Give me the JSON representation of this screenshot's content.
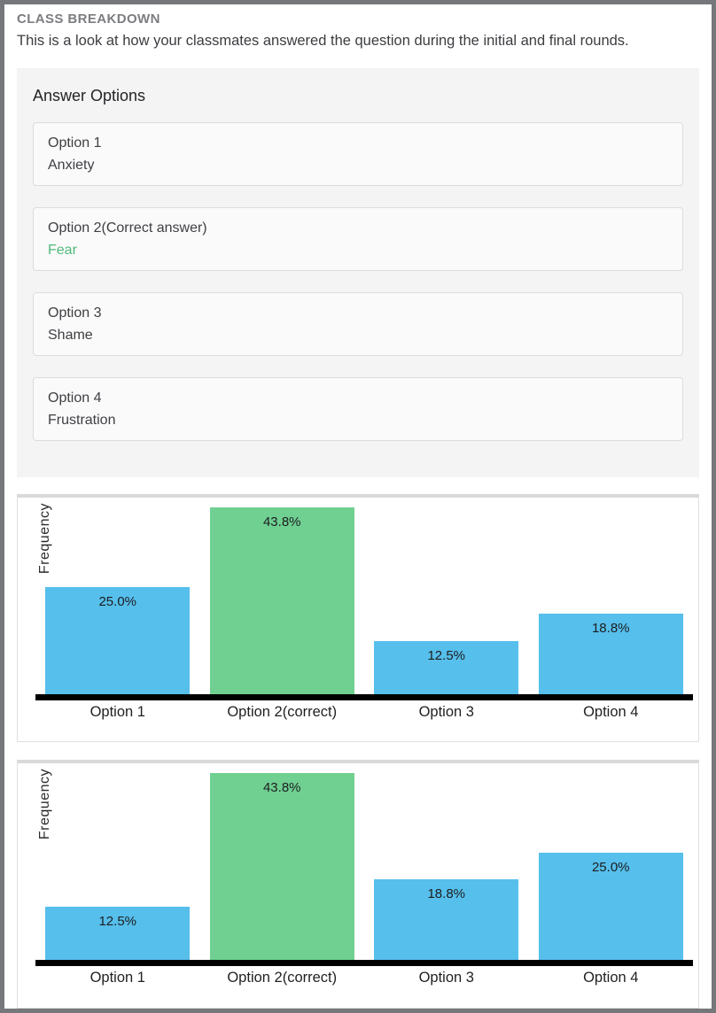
{
  "page": {
    "title": "CLASS BREAKDOWN",
    "description": "This is a look at how your classmates answered the question during the initial and final rounds."
  },
  "answer_options": {
    "heading": "Answer Options",
    "options": [
      {
        "label": "Option 1",
        "value": "Anxiety",
        "correct": false
      },
      {
        "label": "Option 2(Correct answer)",
        "value": "Fear",
        "correct": true
      },
      {
        "label": "Option 3",
        "value": "Shame",
        "correct": false
      },
      {
        "label": "Option 4",
        "value": "Frustration",
        "correct": false
      }
    ]
  },
  "colors": {
    "bar_blue": "#56bfec",
    "bar_green": "#6fd092",
    "correct_text_green": "#50b97c",
    "axis_black": "#000000"
  },
  "chart_data": [
    {
      "type": "bar",
      "round": "initial",
      "categories": [
        "Option 1",
        "Option 2(correct)",
        "Option 3",
        "Option 4"
      ],
      "values": [
        25.0,
        43.8,
        12.5,
        18.8
      ],
      "value_labels": [
        "25.0%",
        "43.8%",
        "12.5%",
        "18.8%"
      ],
      "highlight_index": 1,
      "xlabel": "",
      "ylabel": "Frequency",
      "ylim": [
        0,
        46
      ],
      "grid": false,
      "legend": false
    },
    {
      "type": "bar",
      "round": "final",
      "categories": [
        "Option 1",
        "Option 2(correct)",
        "Option 3",
        "Option 4"
      ],
      "values": [
        12.5,
        43.8,
        18.8,
        25.0
      ],
      "value_labels": [
        "12.5%",
        "43.8%",
        "18.8%",
        "25.0%"
      ],
      "highlight_index": 1,
      "xlabel": "",
      "ylabel": "Frequency",
      "ylim": [
        0,
        46
      ],
      "grid": false,
      "legend": false
    }
  ]
}
